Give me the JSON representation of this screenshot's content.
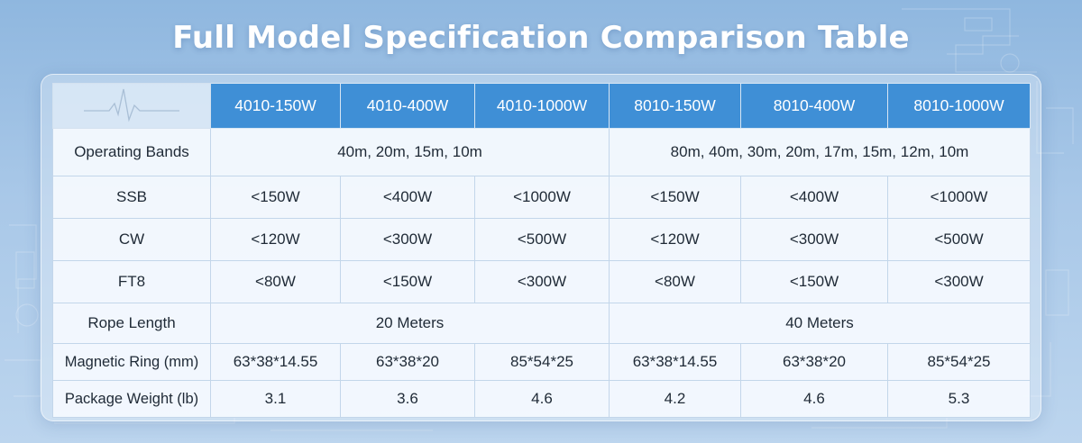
{
  "title": "Full Model Specification Comparison Table",
  "colors": {
    "header_bg": "#3f8fd6",
    "page_bg": "#a9c8e8",
    "cell_bg": "#f4f9fe",
    "text": "#1f2a36"
  },
  "table": {
    "columns": [
      "4010-150W",
      "4010-400W",
      "4010-1000W",
      "8010-150W",
      "8010-400W",
      "8010-1000W"
    ],
    "rows": {
      "bands": {
        "label": "Operating Bands",
        "group_4010": "40m, 20m, 15m, 10m",
        "group_8010": "80m, 40m, 30m, 20m, 17m, 15m, 12m, 10m"
      },
      "ssb": {
        "label": "SSB",
        "values": [
          "<150W",
          "<400W",
          "<1000W",
          "<150W",
          "<400W",
          "<1000W"
        ]
      },
      "cw": {
        "label": "CW",
        "values": [
          "<120W",
          "<300W",
          "<500W",
          "<120W",
          "<300W",
          "<500W"
        ]
      },
      "ft8": {
        "label": "FT8",
        "values": [
          "<80W",
          "<150W",
          "<300W",
          "<80W",
          "<150W",
          "<300W"
        ]
      },
      "rope": {
        "label": "Rope Length",
        "group_4010": "20 Meters",
        "group_8010": "40 Meters"
      },
      "ring": {
        "label": "Magnetic Ring (mm)",
        "values": [
          "63*38*14.55",
          "63*38*20",
          "85*54*25",
          "63*38*14.55",
          "63*38*20",
          "85*54*25"
        ]
      },
      "weight": {
        "label": "Package Weight (lb)",
        "values": [
          "3.1",
          "3.6",
          "4.6",
          "4.2",
          "4.6",
          "5.3"
        ]
      }
    }
  }
}
